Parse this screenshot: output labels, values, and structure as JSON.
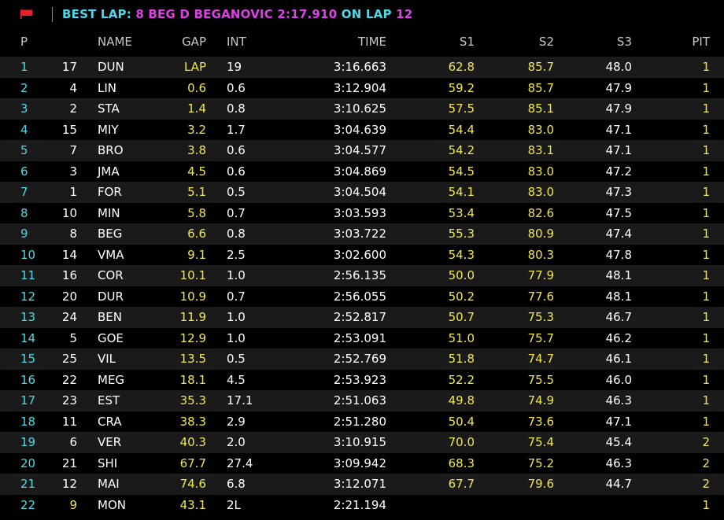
{
  "header": {
    "best_lap_label": "BEST LAP:",
    "best_lap_value": "8 BEG D BEGANOVIC 2:17.910",
    "on_lap_label": "ON LAP",
    "on_lap_value": "12",
    "flag_color": "#e8202a"
  },
  "columns": {
    "p": "P",
    "name": "NAME",
    "gap": "GAP",
    "int": "INT",
    "time": "TIME",
    "s1": "S1",
    "s2": "S2",
    "s3": "S3",
    "pit": "PIT"
  },
  "rows": [
    {
      "p": "1",
      "num": "17",
      "name": "DUN",
      "gap": "LAP",
      "int": "19",
      "time": "3:16.663",
      "s1": "62.8",
      "s2": "85.7",
      "s3": "48.0",
      "pit": "1"
    },
    {
      "p": "2",
      "num": "4",
      "name": "LIN",
      "gap": "0.6",
      "int": "0.6",
      "time": "3:12.904",
      "s1": "59.2",
      "s2": "85.7",
      "s3": "47.9",
      "pit": "1"
    },
    {
      "p": "3",
      "num": "2",
      "name": "STA",
      "gap": "1.4",
      "int": "0.8",
      "time": "3:10.625",
      "s1": "57.5",
      "s2": "85.1",
      "s3": "47.9",
      "pit": "1"
    },
    {
      "p": "4",
      "num": "15",
      "name": "MIY",
      "gap": "3.2",
      "int": "1.7",
      "time": "3:04.639",
      "s1": "54.4",
      "s2": "83.0",
      "s3": "47.1",
      "pit": "1"
    },
    {
      "p": "5",
      "num": "7",
      "name": "BRO",
      "gap": "3.8",
      "int": "0.6",
      "time": "3:04.577",
      "s1": "54.2",
      "s2": "83.1",
      "s3": "47.1",
      "pit": "1"
    },
    {
      "p": "6",
      "num": "3",
      "name": "JMA",
      "gap": "4.5",
      "int": "0.6",
      "time": "3:04.869",
      "s1": "54.5",
      "s2": "83.0",
      "s3": "47.2",
      "pit": "1"
    },
    {
      "p": "7",
      "num": "1",
      "name": "FOR",
      "gap": "5.1",
      "int": "0.5",
      "time": "3:04.504",
      "s1": "54.1",
      "s2": "83.0",
      "s3": "47.3",
      "pit": "1"
    },
    {
      "p": "8",
      "num": "10",
      "name": "MIN",
      "gap": "5.8",
      "int": "0.7",
      "time": "3:03.593",
      "s1": "53.4",
      "s2": "82.6",
      "s3": "47.5",
      "pit": "1"
    },
    {
      "p": "9",
      "num": "8",
      "name": "BEG",
      "gap": "6.6",
      "int": "0.8",
      "time": "3:03.722",
      "s1": "55.3",
      "s2": "80.9",
      "s3": "47.4",
      "pit": "1"
    },
    {
      "p": "10",
      "num": "14",
      "name": "VMA",
      "gap": "9.1",
      "int": "2.5",
      "time": "3:02.600",
      "s1": "54.3",
      "s2": "80.3",
      "s3": "47.8",
      "pit": "1"
    },
    {
      "p": "11",
      "num": "16",
      "name": "COR",
      "gap": "10.1",
      "int": "1.0",
      "time": "2:56.135",
      "s1": "50.0",
      "s2": "77.9",
      "s3": "48.1",
      "pit": "1"
    },
    {
      "p": "12",
      "num": "20",
      "name": "DUR",
      "gap": "10.9",
      "int": "0.7",
      "time": "2:56.055",
      "s1": "50.2",
      "s2": "77.6",
      "s3": "48.1",
      "pit": "1"
    },
    {
      "p": "13",
      "num": "24",
      "name": "BEN",
      "gap": "11.9",
      "int": "1.0",
      "time": "2:52.817",
      "s1": "50.7",
      "s2": "75.3",
      "s3": "46.7",
      "pit": "1"
    },
    {
      "p": "14",
      "num": "5",
      "name": "GOE",
      "gap": "12.9",
      "int": "1.0",
      "time": "2:53.091",
      "s1": "51.0",
      "s2": "75.7",
      "s3": "46.2",
      "pit": "1"
    },
    {
      "p": "15",
      "num": "25",
      "name": "VIL",
      "gap": "13.5",
      "int": "0.5",
      "time": "2:52.769",
      "s1": "51.8",
      "s2": "74.7",
      "s3": "46.1",
      "pit": "1"
    },
    {
      "p": "16",
      "num": "22",
      "name": "MEG",
      "gap": "18.1",
      "int": "4.5",
      "time": "2:53.923",
      "s1": "52.2",
      "s2": "75.5",
      "s3": "46.0",
      "pit": "1"
    },
    {
      "p": "17",
      "num": "23",
      "name": "EST",
      "gap": "35.3",
      "int": "17.1",
      "time": "2:51.063",
      "s1": "49.8",
      "s2": "74.9",
      "s3": "46.3",
      "pit": "1"
    },
    {
      "p": "18",
      "num": "11",
      "name": "CRA",
      "gap": "38.3",
      "int": "2.9",
      "time": "2:51.280",
      "s1": "50.4",
      "s2": "73.6",
      "s3": "47.1",
      "pit": "1"
    },
    {
      "p": "19",
      "num": "6",
      "name": "VER",
      "gap": "40.3",
      "int": "2.0",
      "time": "3:10.915",
      "s1": "70.0",
      "s2": "75.4",
      "s3": "45.4",
      "pit": "2"
    },
    {
      "p": "20",
      "num": "21",
      "name": "SHI",
      "gap": "67.7",
      "int": "27.4",
      "time": "3:09.942",
      "s1": "68.3",
      "s2": "75.2",
      "s3": "46.3",
      "pit": "2"
    },
    {
      "p": "21",
      "num": "12",
      "name": "MAI",
      "gap": "74.6",
      "int": "6.8",
      "time": "3:12.071",
      "s1": "67.7",
      "s2": "79.6",
      "s3": "44.7",
      "pit": "2"
    },
    {
      "p": "22",
      "num": "9",
      "name": "MON",
      "gap": "43.1",
      "int": "2L",
      "time": "2:21.194",
      "s1": "",
      "s2": "",
      "s3": "",
      "pit": "1",
      "num_highlight": true
    }
  ]
}
